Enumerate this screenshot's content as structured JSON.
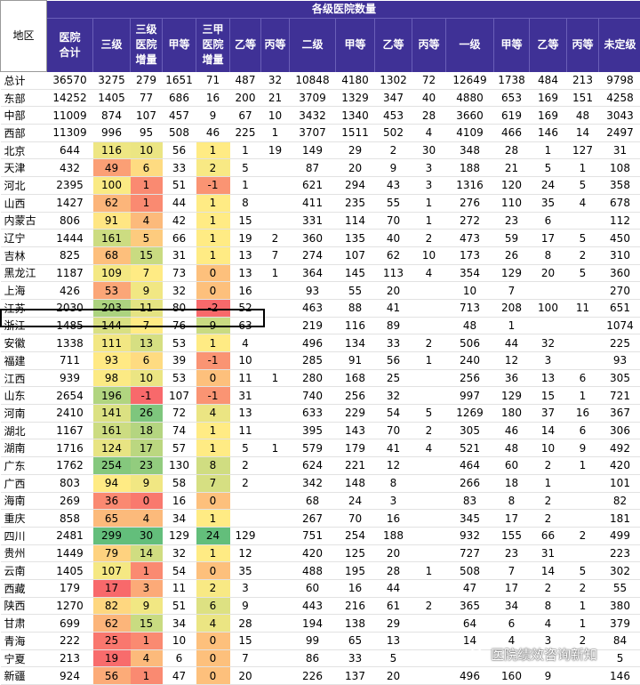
{
  "header": {
    "region": "地区",
    "group_title": "各级医院数量",
    "columns": [
      "医院合计",
      "三级",
      "三级医院增量",
      "甲等",
      "三甲医院增量",
      "乙等",
      "丙等",
      "二级",
      "甲等",
      "乙等",
      "丙等",
      "一级",
      "甲等",
      "乙等",
      "丙等",
      "未定级"
    ]
  },
  "rows": [
    [
      "总计",
      "36570",
      "3275",
      "279",
      "1651",
      "71",
      "487",
      "32",
      "10848",
      "4180",
      "1302",
      "72",
      "12649",
      "1738",
      "484",
      "213",
      "9798"
    ],
    [
      "东部",
      "14252",
      "1405",
      "77",
      "686",
      "16",
      "200",
      "21",
      "3709",
      "1329",
      "347",
      "40",
      "4880",
      "653",
      "169",
      "151",
      "4258"
    ],
    [
      "中部",
      "11009",
      "874",
      "107",
      "457",
      "9",
      "67",
      "10",
      "3432",
      "1340",
      "453",
      "28",
      "3660",
      "619",
      "169",
      "48",
      "3043"
    ],
    [
      "西部",
      "11309",
      "996",
      "95",
      "508",
      "46",
      "225",
      "1",
      "3707",
      "1511",
      "502",
      "4",
      "4109",
      "466",
      "146",
      "14",
      "2497"
    ],
    [
      "北京",
      "644",
      "116",
      "10",
      "56",
      "1",
      "1",
      "19",
      "149",
      "29",
      "2",
      "30",
      "348",
      "28",
      "1",
      "127",
      "31"
    ],
    [
      "天津",
      "432",
      "49",
      "6",
      "33",
      "2",
      "5",
      "",
      "87",
      "20",
      "9",
      "3",
      "188",
      "21",
      "5",
      "1",
      "108"
    ],
    [
      "河北",
      "2395",
      "100",
      "1",
      "51",
      "-1",
      "1",
      "",
      "621",
      "294",
      "43",
      "3",
      "1316",
      "120",
      "24",
      "5",
      "358"
    ],
    [
      "山西",
      "1427",
      "62",
      "1",
      "44",
      "1",
      "8",
      "",
      "411",
      "235",
      "55",
      "1",
      "276",
      "110",
      "35",
      "4",
      "678"
    ],
    [
      "内蒙古",
      "806",
      "91",
      "4",
      "42",
      "1",
      "15",
      "",
      "331",
      "114",
      "70",
      "1",
      "272",
      "23",
      "6",
      "",
      "112"
    ],
    [
      "辽宁",
      "1444",
      "161",
      "5",
      "66",
      "1",
      "19",
      "2",
      "360",
      "135",
      "40",
      "2",
      "473",
      "59",
      "17",
      "5",
      "450"
    ],
    [
      "吉林",
      "825",
      "68",
      "15",
      "31",
      "1",
      "13",
      "7",
      "274",
      "107",
      "62",
      "10",
      "173",
      "26",
      "8",
      "2",
      "310"
    ],
    [
      "黑龙江",
      "1187",
      "109",
      "7",
      "73",
      "0",
      "13",
      "1",
      "364",
      "145",
      "113",
      "4",
      "354",
      "129",
      "20",
      "5",
      "360"
    ],
    [
      "上海",
      "426",
      "53",
      "9",
      "32",
      "0",
      "16",
      "",
      "93",
      "55",
      "20",
      "",
      "10",
      "7",
      "",
      "",
      "270"
    ],
    [
      "江苏",
      "2030",
      "203",
      "11",
      "80",
      "-2",
      "52",
      "",
      "463",
      "88",
      "41",
      "",
      "713",
      "208",
      "100",
      "11",
      "651"
    ],
    [
      "浙江",
      "1485",
      "144",
      "7",
      "76",
      "9",
      "63",
      "",
      "219",
      "116",
      "89",
      "",
      "48",
      "1",
      "",
      "",
      "1074"
    ],
    [
      "安徽",
      "1338",
      "111",
      "13",
      "53",
      "1",
      "4",
      "",
      "496",
      "134",
      "33",
      "2",
      "506",
      "44",
      "32",
      "",
      "225"
    ],
    [
      "福建",
      "711",
      "93",
      "6",
      "39",
      "-1",
      "10",
      "",
      "285",
      "91",
      "56",
      "1",
      "240",
      "12",
      "3",
      "",
      "93"
    ],
    [
      "江西",
      "939",
      "98",
      "10",
      "53",
      "0",
      "11",
      "1",
      "280",
      "168",
      "25",
      "",
      "256",
      "36",
      "13",
      "6",
      "305"
    ],
    [
      "山东",
      "2654",
      "196",
      "-1",
      "107",
      "-1",
      "31",
      "",
      "740",
      "256",
      "32",
      "",
      "997",
      "129",
      "15",
      "1",
      "721"
    ],
    [
      "河南",
      "2410",
      "141",
      "26",
      "72",
      "4",
      "13",
      "",
      "633",
      "229",
      "54",
      "5",
      "1269",
      "180",
      "37",
      "16",
      "367"
    ],
    [
      "湖北",
      "1167",
      "161",
      "18",
      "74",
      "1",
      "11",
      "",
      "395",
      "143",
      "70",
      "2",
      "305",
      "46",
      "14",
      "6",
      "306"
    ],
    [
      "湖南",
      "1716",
      "124",
      "17",
      "57",
      "1",
      "5",
      "1",
      "579",
      "179",
      "41",
      "4",
      "521",
      "48",
      "10",
      "9",
      "492"
    ],
    [
      "广东",
      "1762",
      "254",
      "23",
      "130",
      "8",
      "2",
      "",
      "624",
      "221",
      "12",
      "",
      "464",
      "60",
      "2",
      "1",
      "420"
    ],
    [
      "广西",
      "803",
      "94",
      "9",
      "58",
      "7",
      "2",
      "",
      "342",
      "148",
      "8",
      "",
      "266",
      "18",
      "1",
      "",
      "101"
    ],
    [
      "海南",
      "269",
      "36",
      "0",
      "16",
      "0",
      "",
      "",
      "68",
      "24",
      "3",
      "",
      "83",
      "8",
      "2",
      "",
      "82"
    ],
    [
      "重庆",
      "858",
      "65",
      "4",
      "34",
      "1",
      "",
      "",
      "267",
      "70",
      "16",
      "",
      "345",
      "17",
      "2",
      "",
      "181"
    ],
    [
      "四川",
      "2481",
      "299",
      "30",
      "129",
      "24",
      "129",
      "",
      "751",
      "254",
      "188",
      "",
      "932",
      "155",
      "66",
      "2",
      "499"
    ],
    [
      "贵州",
      "1449",
      "79",
      "14",
      "32",
      "1",
      "12",
      "",
      "420",
      "125",
      "20",
      "",
      "727",
      "23",
      "31",
      "",
      "223"
    ],
    [
      "云南",
      "1405",
      "107",
      "1",
      "54",
      "0",
      "35",
      "",
      "488",
      "195",
      "28",
      "1",
      "508",
      "7",
      "14",
      "5",
      "302"
    ],
    [
      "西藏",
      "179",
      "17",
      "3",
      "11",
      "2",
      "3",
      "",
      "60",
      "16",
      "44",
      "",
      "47",
      "17",
      "2",
      "2",
      "55"
    ],
    [
      "陕西",
      "1270",
      "82",
      "9",
      "51",
      "6",
      "9",
      "",
      "443",
      "216",
      "61",
      "2",
      "365",
      "34",
      "8",
      "1",
      "380"
    ],
    [
      "甘肃",
      "699",
      "62",
      "15",
      "34",
      "4",
      "28",
      "",
      "194",
      "138",
      "29",
      "",
      "64",
      "6",
      "4",
      "1",
      "379"
    ],
    [
      "青海",
      "222",
      "25",
      "1",
      "10",
      "0",
      "15",
      "",
      "99",
      "65",
      "13",
      "",
      "14",
      "4",
      "3",
      "2",
      "84"
    ],
    [
      "宁夏",
      "213",
      "19",
      "4",
      "6",
      "0",
      "7",
      "",
      "86",
      "33",
      "5",
      "",
      "",
      "",
      "",
      "",
      "5"
    ],
    [
      "新疆",
      "924",
      "56",
      "1",
      "47",
      "0",
      "20",
      "",
      "226",
      "137",
      "20",
      "",
      "496",
      "160",
      "9",
      "",
      "146"
    ]
  ],
  "colors": {
    "header_bg": "#3f3196",
    "scale_red": "#f8696b",
    "scale_yellow": "#ffeb84",
    "scale_green": "#63be7b"
  },
  "watermark": {
    "text": "医院绩效咨询新知",
    "icon": "wechat-icon"
  }
}
